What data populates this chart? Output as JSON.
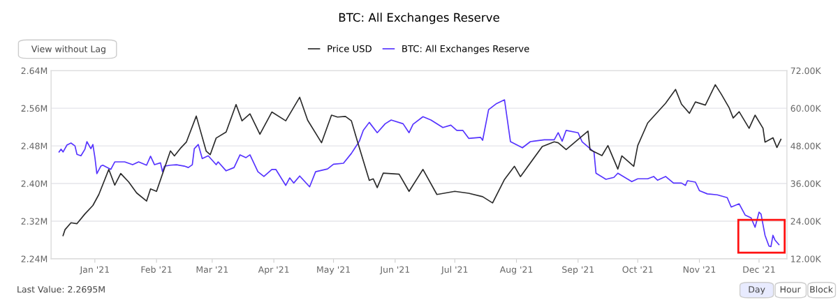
{
  "chart_data": {
    "type": "line",
    "title": "BTC: All Exchanges Reserve",
    "xlim": [
      "2020-12-10",
      "2021-12-15"
    ],
    "xticks": [
      {
        "value": "2021-01-01",
        "label": "Jan '21"
      },
      {
        "value": "2021-02-01",
        "label": "Feb '21"
      },
      {
        "value": "2021-03-01",
        "label": "Mar '21"
      },
      {
        "value": "2021-04-01",
        "label": "Apr '21"
      },
      {
        "value": "2021-05-01",
        "label": "May '21"
      },
      {
        "value": "2021-06-01",
        "label": "Jun '21"
      },
      {
        "value": "2021-07-01",
        "label": "Jul '21"
      },
      {
        "value": "2021-08-01",
        "label": "Aug '21"
      },
      {
        "value": "2021-09-01",
        "label": "Sep '21"
      },
      {
        "value": "2021-10-01",
        "label": "Oct '21"
      },
      {
        "value": "2021-11-01",
        "label": "Nov '21"
      },
      {
        "value": "2021-12-01",
        "label": "Dec '21"
      }
    ],
    "ylim": [
      2.24,
      2.64
    ],
    "yticks": [
      {
        "value": 2.24,
        "label": "2.24M"
      },
      {
        "value": 2.32,
        "label": "2.32M"
      },
      {
        "value": 2.4,
        "label": "2.40M"
      },
      {
        "value": 2.48,
        "label": "2.48M"
      },
      {
        "value": 2.56,
        "label": "2.56M"
      },
      {
        "value": 2.64,
        "label": "2.64M"
      }
    ],
    "y2lim": [
      12,
      72
    ],
    "y2ticks": [
      {
        "value": 12,
        "label": "12.00K"
      },
      {
        "value": 24,
        "label": "24.00K"
      },
      {
        "value": 36,
        "label": "36.00K"
      },
      {
        "value": 48,
        "label": "48.00K"
      },
      {
        "value": 60,
        "label": "60.00K"
      },
      {
        "value": 72,
        "label": "72.00K"
      }
    ],
    "grid": "y",
    "legend": "top",
    "marker": "none",
    "line_style": "solid",
    "series": [
      {
        "name": "Price USD",
        "color": "#2b2b2b",
        "axis": "y2",
        "x": [
          "2020-12-16",
          "2020-12-17",
          "2020-12-20",
          "2020-12-23",
          "2020-12-27",
          "2020-12-31",
          "2021-01-03",
          "2021-01-08",
          "2021-01-11",
          "2021-01-14",
          "2021-01-18",
          "2021-01-22",
          "2021-01-27",
          "2021-01-29",
          "2021-02-01",
          "2021-02-08",
          "2021-02-10",
          "2021-02-13",
          "2021-02-16",
          "2021-02-21",
          "2021-02-26",
          "2021-02-28",
          "2021-03-03",
          "2021-03-08",
          "2021-03-13",
          "2021-03-16",
          "2021-03-20",
          "2021-03-25",
          "2021-03-31",
          "2021-04-07",
          "2021-04-14",
          "2021-04-18",
          "2021-04-25",
          "2021-04-30",
          "2021-05-03",
          "2021-05-07",
          "2021-05-10",
          "2021-05-13",
          "2021-05-19",
          "2021-05-21",
          "2021-05-23",
          "2021-05-26",
          "2021-06-03",
          "2021-06-08",
          "2021-06-15",
          "2021-06-22",
          "2021-07-01",
          "2021-07-08",
          "2021-07-15",
          "2021-07-20",
          "2021-07-26",
          "2021-07-31",
          "2021-08-03",
          "2021-08-14",
          "2021-08-20",
          "2021-08-22",
          "2021-08-26",
          "2021-09-06",
          "2021-09-07",
          "2021-09-13",
          "2021-09-16",
          "2021-09-21",
          "2021-09-23",
          "2021-09-29",
          "2021-10-01",
          "2021-10-06",
          "2021-10-15",
          "2021-10-20",
          "2021-10-23",
          "2021-10-27",
          "2021-10-30",
          "2021-11-04",
          "2021-11-09",
          "2021-11-12",
          "2021-11-16",
          "2021-11-18",
          "2021-11-21",
          "2021-11-26",
          "2021-11-29",
          "2021-12-03",
          "2021-12-04",
          "2021-12-08",
          "2021-12-10",
          "2021-12-12"
        ],
        "values": [
          19.4,
          21.3,
          23.5,
          23.2,
          26.3,
          29.0,
          32.5,
          40.5,
          35.5,
          39.2,
          36.5,
          33.0,
          30.4,
          34.3,
          33.5,
          46.4,
          44.8,
          47.2,
          49.2,
          57.5,
          46.3,
          45.2,
          50.5,
          52.4,
          61.2,
          56.0,
          58.2,
          51.7,
          58.8,
          56.0,
          63.5,
          56.2,
          49.0,
          57.8,
          57.2,
          57.4,
          56.0,
          49.5,
          37.0,
          37.5,
          34.7,
          39.3,
          39.0,
          33.5,
          40.5,
          32.5,
          33.5,
          32.9,
          31.8,
          29.8,
          37.3,
          41.5,
          38.2,
          47.8,
          49.3,
          49.0,
          46.8,
          52.7,
          46.8,
          44.9,
          48.1,
          40.6,
          44.8,
          41.5,
          48.1,
          55.3,
          61.6,
          66.0,
          61.3,
          58.4,
          62.0,
          61.0,
          67.5,
          64.5,
          60.1,
          56.9,
          58.9,
          53.6,
          57.8,
          53.6,
          49.2,
          50.6,
          47.5,
          50.1
        ]
      },
      {
        "name": "BTC: All Exchanges Reserve",
        "color": "#5533ff",
        "x": [
          "2020-12-14",
          "2020-12-15",
          "2020-12-16",
          "2020-12-18",
          "2020-12-20",
          "2020-12-22",
          "2020-12-23",
          "2020-12-25",
          "2020-12-27",
          "2020-12-28",
          "2020-12-30",
          "2020-12-31",
          "2021-01-01",
          "2021-01-02",
          "2021-01-04",
          "2021-01-05",
          "2021-01-09",
          "2021-01-11",
          "2021-01-16",
          "2021-01-20",
          "2021-01-23",
          "2021-01-27",
          "2021-01-29",
          "2021-01-31",
          "2021-02-03",
          "2021-02-04",
          "2021-02-05",
          "2021-02-08",
          "2021-02-11",
          "2021-02-15",
          "2021-02-17",
          "2021-02-19",
          "2021-02-20",
          "2021-02-22",
          "2021-02-24",
          "2021-02-27",
          "2021-03-03",
          "2021-03-04",
          "2021-03-08",
          "2021-03-12",
          "2021-03-15",
          "2021-03-18",
          "2021-03-20",
          "2021-03-24",
          "2021-03-27",
          "2021-03-31",
          "2021-04-02",
          "2021-04-07",
          "2021-04-09",
          "2021-04-11",
          "2021-04-14",
          "2021-04-19",
          "2021-04-22",
          "2021-04-28",
          "2021-05-01",
          "2021-05-06",
          "2021-05-10",
          "2021-05-14",
          "2021-05-16",
          "2021-05-19",
          "2021-05-23",
          "2021-05-27",
          "2021-05-30",
          "2021-06-05",
          "2021-06-08",
          "2021-06-10",
          "2021-06-15",
          "2021-06-19",
          "2021-06-25",
          "2021-06-29",
          "2021-07-02",
          "2021-07-05",
          "2021-07-08",
          "2021-07-14",
          "2021-07-15",
          "2021-07-18",
          "2021-07-22",
          "2021-07-26",
          "2021-07-29",
          "2021-08-04",
          "2021-08-08",
          "2021-08-15",
          "2021-08-20",
          "2021-08-22",
          "2021-08-24",
          "2021-08-26",
          "2021-09-01",
          "2021-09-03",
          "2021-09-09",
          "2021-09-10",
          "2021-09-15",
          "2021-09-19",
          "2021-09-21",
          "2021-09-28",
          "2021-10-01",
          "2021-10-06",
          "2021-10-09",
          "2021-10-11",
          "2021-10-15",
          "2021-10-19",
          "2021-10-23",
          "2021-10-25",
          "2021-10-26",
          "2021-10-30",
          "2021-11-01",
          "2021-11-05",
          "2021-11-10",
          "2021-11-15",
          "2021-11-17",
          "2021-11-21",
          "2021-11-24",
          "2021-11-27",
          "2021-11-29",
          "2021-12-01",
          "2021-12-02",
          "2021-12-04",
          "2021-12-06",
          "2021-12-07",
          "2021-12-08",
          "2021-12-09",
          "2021-12-11"
        ],
        "values": [
          2.467,
          2.473,
          2.467,
          2.482,
          2.486,
          2.48,
          2.462,
          2.459,
          2.473,
          2.489,
          2.474,
          2.483,
          2.456,
          2.421,
          2.437,
          2.439,
          2.43,
          2.446,
          2.446,
          2.44,
          2.446,
          2.439,
          2.458,
          2.44,
          2.444,
          2.425,
          2.437,
          2.439,
          2.44,
          2.437,
          2.434,
          2.44,
          2.474,
          2.483,
          2.453,
          2.459,
          2.44,
          2.446,
          2.427,
          2.434,
          2.461,
          2.455,
          2.461,
          2.425,
          2.415,
          2.43,
          2.43,
          2.396,
          2.412,
          2.401,
          2.416,
          2.393,
          2.425,
          2.431,
          2.441,
          2.443,
          2.464,
          2.49,
          2.513,
          2.53,
          2.508,
          2.527,
          2.535,
          2.527,
          2.508,
          2.526,
          2.542,
          2.535,
          2.519,
          2.524,
          2.513,
          2.513,
          2.496,
          2.498,
          2.492,
          2.557,
          2.57,
          2.578,
          2.489,
          2.476,
          2.489,
          2.493,
          2.493,
          2.508,
          2.49,
          2.513,
          2.508,
          2.489,
          2.467,
          2.422,
          2.409,
          2.413,
          2.422,
          2.404,
          2.41,
          2.41,
          2.415,
          2.407,
          2.415,
          2.401,
          2.401,
          2.396,
          2.406,
          2.403,
          2.385,
          2.378,
          2.376,
          2.37,
          2.35,
          2.357,
          2.333,
          2.327,
          2.307,
          2.339,
          2.335,
          2.29,
          2.267,
          2.266,
          2.29,
          2.28,
          2.27
        ]
      }
    ],
    "annotations": [
      "Last Value: 2.2695M",
      "View without Lag",
      "Day",
      "Hour",
      "Block"
    ]
  }
}
